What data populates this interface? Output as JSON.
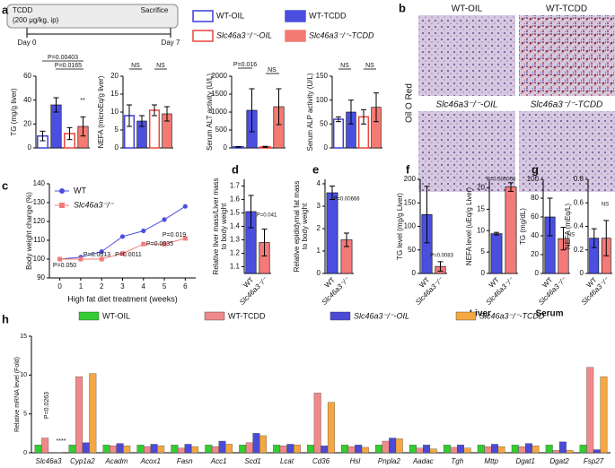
{
  "panel_labels": [
    "a",
    "b",
    "c",
    "d",
    "e",
    "f",
    "g",
    "h"
  ],
  "timeline": {
    "title": "TCDD",
    "dose": "(200 μg/kg, ip)",
    "start": "Day 0",
    "end": "Day 7",
    "end_label": "Sacrifice"
  },
  "groups": [
    {
      "name": "WT-OIL",
      "color": "#3b3fd6",
      "filled": false
    },
    {
      "name": "WT-TCDD",
      "color": "#4b4fe0",
      "filled": true
    },
    {
      "name": "Slc46a3⁻/⁻-OIL",
      "color": "#e8453c",
      "filled": false
    },
    {
      "name": "Slc46a3⁻/⁻-TCDD",
      "color": "#f47a72",
      "filled": true
    }
  ],
  "stain": "Oil O Red",
  "site_labels": [
    "Liver",
    "Serum"
  ],
  "chart_data": [
    {
      "type": "bar",
      "ylabel": [
        "TG (mg/g liver)"
      ],
      "values": [
        10,
        36,
        12,
        18
      ],
      "errors": [
        4,
        6,
        5,
        8
      ],
      "ylim": [
        0,
        60
      ],
      "yticks": [
        0,
        20,
        40,
        60
      ],
      "annotations": [
        "P=0.00403",
        "P=0.0165",
        "**"
      ]
    },
    {
      "type": "bar",
      "ylabel": [
        "NEFA (microEq/g liver)"
      ],
      "values": [
        9,
        7.5,
        10.5,
        9.5
      ],
      "errors": [
        3,
        1.5,
        1.5,
        2
      ],
      "ylim": [
        0,
        20
      ],
      "yticks": [
        0,
        5,
        10,
        15,
        20
      ],
      "annotations": [
        "NS",
        "NS"
      ]
    },
    {
      "type": "bar",
      "ylabel": [
        "Serum ALT activity (U/L)"
      ],
      "values": [
        30,
        1050,
        30,
        1150
      ],
      "errors": [
        10,
        600,
        15,
        500
      ],
      "ylim": [
        0,
        2000
      ],
      "yticks": [
        0,
        500,
        1000,
        1500,
        2000
      ],
      "annotations": [
        "P=0.016",
        "NS"
      ]
    },
    {
      "type": "bar",
      "ylabel": [
        "Serum ALP activity (U/L)"
      ],
      "values": [
        60,
        75,
        65,
        85
      ],
      "errors": [
        5,
        25,
        15,
        30
      ],
      "ylim": [
        0,
        150
      ],
      "yticks": [
        0,
        50,
        100,
        150
      ],
      "annotations": [
        "NS",
        "NS"
      ]
    },
    {
      "type": "line",
      "xlabel": "High fat diet treatment (weeks)",
      "ylabel": [
        "Body weight change (%)"
      ],
      "x": [
        0,
        1,
        2,
        3,
        4,
        5,
        6
      ],
      "xlim": [
        -0.5,
        6.5
      ],
      "xticks": [
        0,
        1,
        2,
        3,
        4,
        5,
        6
      ],
      "ylim": [
        90,
        140
      ],
      "yticks": [
        90,
        100,
        110,
        120,
        130,
        140
      ],
      "series": [
        {
          "name": "WT",
          "color": "#4b4fe0",
          "marker": "circle",
          "values": [
            100,
            101,
            104,
            112,
            115,
            121,
            128
          ]
        },
        {
          "name": "Slc46a3⁻/⁻",
          "color": "#f47a7a",
          "marker": "square",
          "values": [
            100,
            100,
            100,
            103,
            108,
            108,
            111
          ]
        }
      ],
      "annotations": [
        "P=0.050",
        "P=0.0013",
        "P=0.0011",
        "P=0.0035",
        "P=0.019"
      ]
    },
    {
      "type": "bar",
      "ylabel": [
        "Relative liver mass/Liver mass",
        "to body weight"
      ],
      "categories": [
        "WT",
        "Slc46a3⁻/⁻"
      ],
      "colors": [
        "#4b4fe0",
        "#f47a7a"
      ],
      "values": [
        1.51,
        1.28
      ],
      "errors": [
        0.12,
        0.1
      ],
      "ylim": [
        1.05,
        1.75
      ],
      "yticks": [
        1.1,
        1.2,
        1.3,
        1.4,
        1.5,
        1.6,
        1.7
      ],
      "annotations": [
        "P=0.041"
      ]
    },
    {
      "type": "bar",
      "ylabel": [
        "Relative epididymal fat mass",
        "to body weight"
      ],
      "categories": [
        "WT",
        "Slc46a3⁻/⁻"
      ],
      "colors": [
        "#4b4fe0",
        "#f47a7a"
      ],
      "values": [
        3.6,
        1.5
      ],
      "errors": [
        0.3,
        0.3
      ],
      "ylim": [
        0,
        4.2
      ],
      "yticks": [
        0,
        1,
        2,
        3,
        4
      ],
      "annotations": [
        "P=0.00666"
      ]
    },
    {
      "type": "bar",
      "ylabel": [
        "TG level (mg/g Liver)"
      ],
      "categories": [
        "WT",
        "Slc46a3⁻/⁻"
      ],
      "colors": [
        "#4b4fe0",
        "#f47a7a"
      ],
      "values": [
        125,
        15
      ],
      "errors": [
        60,
        10
      ],
      "ylim": [
        0,
        200
      ],
      "yticks": [
        0,
        50,
        100,
        150,
        200
      ],
      "annotations": [
        "P=0.0083"
      ]
    },
    {
      "type": "bar",
      "ylabel": [
        "NEFA level (uEq/g Liver)"
      ],
      "categories": [
        "WT",
        "Slc46a3⁻/⁻"
      ],
      "colors": [
        "#4b4fe0",
        "#f47a7a"
      ],
      "values": [
        9.3,
        20.2
      ],
      "errors": [
        0.3,
        1
      ],
      "ylim": [
        0,
        22
      ],
      "yticks": [
        0,
        5,
        10,
        15,
        20
      ],
      "annotations": [
        "P=0.000008"
      ]
    },
    {
      "type": "bar",
      "ylabel": [
        "TG (mg/dL)"
      ],
      "categories": [
        "WT",
        "Slc46a3⁻/⁻"
      ],
      "colors": [
        "#4b4fe0",
        "#f47a7a"
      ],
      "values": [
        60,
        37
      ],
      "errors": [
        20,
        12
      ],
      "ylim": [
        0,
        100
      ],
      "yticks": [
        0,
        20,
        40,
        60,
        80,
        100
      ],
      "annotations": [
        "NS"
      ]
    },
    {
      "type": "bar",
      "ylabel": [
        "NEFA (mEq/L)"
      ],
      "categories": [
        "WT",
        "Slc46a3⁻/⁻"
      ],
      "colors": [
        "#4b4fe0",
        "#f47a7a"
      ],
      "values": [
        0.3,
        0.3
      ],
      "errors": [
        0.08,
        0.15
      ],
      "ylim": [
        0,
        0.8
      ],
      "yticks": [
        0,
        0.2,
        0.4,
        0.6,
        0.8
      ],
      "annotations": [
        "NS"
      ]
    },
    {
      "type": "grouped",
      "ylabel": [
        "Relative mRNA level (Fold)"
      ],
      "categories": [
        "Slc46a3",
        "Cyp1a2",
        "Acadm",
        "Acox1",
        "Fasn",
        "Acc1",
        "Scd1",
        "Lcat",
        "Cd36",
        "Hsl",
        "Pnpla2",
        "Aadac",
        "Tgh",
        "Mttp",
        "Dgat1",
        "Dgat2",
        "Fsp27"
      ],
      "ylim": [
        0,
        15
      ],
      "yticks": [
        0,
        5,
        10,
        15
      ],
      "series": [
        {
          "name": "WT-OIL",
          "color": "#33cc33",
          "values": [
            1,
            1,
            1,
            1,
            1,
            1,
            1,
            1,
            1,
            1,
            1,
            1,
            1,
            1,
            1,
            1,
            1
          ]
        },
        {
          "name": "WT-TCDD",
          "color": "#f08a8a",
          "values": [
            1.9,
            9.8,
            0.9,
            0.8,
            0.6,
            0.8,
            1.3,
            0.9,
            7.7,
            0.8,
            1.5,
            0.6,
            0.7,
            0.8,
            0.8,
            0.3,
            11
          ]
        },
        {
          "name": "Slc46a3⁻/⁻-OIL",
          "color": "#4b4bd6",
          "values": [
            0.05,
            1.3,
            1.2,
            1.1,
            1.1,
            1.5,
            2.5,
            1.1,
            0.9,
            1.0,
            1.9,
            1.0,
            1.0,
            1.1,
            1.2,
            1.4,
            0.4
          ]
        },
        {
          "name": "Slc46a3⁻/⁻-TCDD",
          "color": "#f4a742",
          "values": [
            0.05,
            10.2,
            0.9,
            0.9,
            0.8,
            1.1,
            2.2,
            1.0,
            6.5,
            0.7,
            1.8,
            0.5,
            0.6,
            0.8,
            0.9,
            0.3,
            9.8
          ]
        }
      ],
      "annotations": [
        "P=0.0263",
        "****"
      ]
    }
  ]
}
